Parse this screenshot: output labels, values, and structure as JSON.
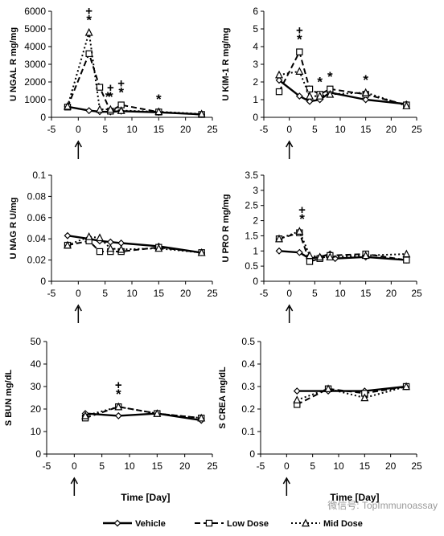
{
  "chart_data": [
    {
      "type": "line",
      "ylabel": "U NGAL R mg/mg",
      "xlim": [
        -5,
        25
      ],
      "ylim": [
        0,
        6000
      ],
      "yticks": [
        0,
        1000,
        2000,
        3000,
        4000,
        5000,
        6000
      ],
      "xticks": [
        -5,
        0,
        5,
        10,
        15,
        20,
        25
      ],
      "series": [
        {
          "name": "Vehicle",
          "x": [
            -2,
            2,
            4,
            6,
            8,
            15,
            23
          ],
          "y": [
            600,
            380,
            320,
            310,
            350,
            280,
            170
          ]
        },
        {
          "name": "Low Dose",
          "x": [
            -2,
            2,
            4,
            6,
            8,
            15,
            23
          ],
          "y": [
            580,
            3600,
            1700,
            350,
            700,
            300,
            160
          ]
        },
        {
          "name": "Mid Dose",
          "x": [
            -2,
            2,
            4,
            6,
            8,
            15,
            23
          ],
          "y": [
            620,
            4800,
            450,
            450,
            380,
            320,
            190
          ]
        }
      ],
      "annotations": [
        {
          "x": 2,
          "marks": "+ *"
        },
        {
          "x": 5.5,
          "marks": "*"
        },
        {
          "x": 6,
          "marks": "+ *"
        },
        {
          "x": 8,
          "marks": "+ *"
        },
        {
          "x": 15,
          "marks": "*"
        }
      ]
    },
    {
      "type": "line",
      "ylabel": "U KIM-1 R mg/mg",
      "xlim": [
        -5,
        25
      ],
      "ylim": [
        0,
        6
      ],
      "yticks": [
        0,
        1,
        2,
        3,
        4,
        5,
        6
      ],
      "xticks": [
        -5,
        0,
        5,
        10,
        15,
        20,
        25
      ],
      "series": [
        {
          "name": "Vehicle",
          "x": [
            -2,
            2,
            4,
            6,
            8,
            15,
            23
          ],
          "y": [
            2.1,
            1.2,
            0.9,
            1.0,
            1.4,
            1.0,
            0.75
          ]
        },
        {
          "name": "Low Dose",
          "x": [
            -2,
            2,
            4,
            6,
            8,
            15,
            23
          ],
          "y": [
            1.45,
            3.7,
            1.6,
            1.3,
            1.6,
            1.3,
            0.7
          ]
        },
        {
          "name": "Mid Dose",
          "x": [
            -2,
            2,
            4,
            6,
            8,
            15,
            23
          ],
          "y": [
            2.4,
            2.6,
            1.2,
            1.2,
            1.3,
            1.4,
            0.65
          ]
        }
      ],
      "annotations": [
        {
          "x": 2,
          "marks": "+ *"
        },
        {
          "x": 6,
          "marks": "*"
        },
        {
          "x": 8,
          "marks": "*"
        },
        {
          "x": 15,
          "marks": "*"
        }
      ]
    },
    {
      "type": "line",
      "ylabel": "U NAG R U/mg",
      "xlim": [
        -5,
        25
      ],
      "ylim": [
        0,
        0.1
      ],
      "yticks": [
        0,
        0.02,
        0.04,
        0.06,
        0.08,
        0.1
      ],
      "xticks": [
        -5,
        0,
        5,
        10,
        15,
        20,
        25
      ],
      "series": [
        {
          "name": "Vehicle",
          "x": [
            -2,
            2,
            4,
            6,
            8,
            15,
            23
          ],
          "y": [
            0.043,
            0.04,
            0.038,
            0.037,
            0.036,
            0.033,
            0.027
          ]
        },
        {
          "name": "Low Dose",
          "x": [
            -2,
            2,
            4,
            6,
            8,
            15,
            23
          ],
          "y": [
            0.034,
            0.038,
            0.028,
            0.028,
            0.028,
            0.032,
            0.027
          ]
        },
        {
          "name": "Mid Dose",
          "x": [
            -2,
            2,
            4,
            6,
            8,
            15,
            23
          ],
          "y": [
            0.034,
            0.042,
            0.041,
            0.031,
            0.03,
            0.031,
            0.027
          ]
        }
      ],
      "annotations": []
    },
    {
      "type": "line",
      "ylabel": "U PRO R mg/mg",
      "xlim": [
        -5,
        25
      ],
      "ylim": [
        0,
        3.5
      ],
      "yticks": [
        0,
        0.5,
        1,
        1.5,
        2,
        2.5,
        3,
        3.5
      ],
      "xticks": [
        -5,
        0,
        5,
        10,
        15,
        20,
        25
      ],
      "series": [
        {
          "name": "Vehicle",
          "x": [
            -2,
            2,
            4,
            6,
            8,
            9,
            15,
            23
          ],
          "y": [
            1.0,
            0.95,
            0.75,
            0.8,
            0.9,
            0.75,
            0.8,
            0.7
          ]
        },
        {
          "name": "Low Dose",
          "x": [
            -2,
            2,
            4,
            6,
            8,
            15,
            23
          ],
          "y": [
            1.4,
            1.6,
            0.65,
            0.75,
            0.85,
            0.9,
            0.7
          ]
        },
        {
          "name": "Mid Dose",
          "x": [
            -2,
            2,
            4,
            6,
            8,
            15,
            23
          ],
          "y": [
            1.4,
            1.65,
            0.85,
            0.8,
            0.8,
            0.85,
            0.9
          ]
        }
      ],
      "annotations": [
        {
          "x": 2.5,
          "marks": "+ *"
        }
      ]
    },
    {
      "type": "line",
      "ylabel": "S BUN mg/dL",
      "xlabel": "Time [Day]",
      "xlim": [
        -5,
        25
      ],
      "ylim": [
        0,
        50
      ],
      "yticks": [
        0,
        10,
        20,
        30,
        40,
        50
      ],
      "xticks": [
        -5,
        0,
        5,
        10,
        15,
        20,
        25
      ],
      "series": [
        {
          "name": "Vehicle",
          "x": [
            2,
            8,
            15,
            23
          ],
          "y": [
            18,
            17,
            18,
            15
          ]
        },
        {
          "name": "Low Dose",
          "x": [
            2,
            8,
            15,
            23
          ],
          "y": [
            16,
            21,
            18,
            16
          ]
        },
        {
          "name": "Mid Dose",
          "x": [
            2,
            8,
            15,
            23
          ],
          "y": [
            17,
            21,
            18,
            16
          ]
        }
      ],
      "annotations": [
        {
          "x": 8,
          "marks": "+ *"
        }
      ]
    },
    {
      "type": "line",
      "ylabel": "S CREA mg/dL",
      "xlabel": "Time [Day]",
      "xlim": [
        -5,
        25
      ],
      "ylim": [
        0,
        0.5
      ],
      "yticks": [
        0,
        0.1,
        0.2,
        0.3,
        0.4,
        0.5
      ],
      "xticks": [
        -5,
        0,
        5,
        10,
        15,
        20,
        25
      ],
      "series": [
        {
          "name": "Vehicle",
          "x": [
            2,
            8,
            15,
            23
          ],
          "y": [
            0.28,
            0.28,
            0.28,
            0.3
          ]
        },
        {
          "name": "Low Dose",
          "x": [
            2,
            8,
            15,
            23
          ],
          "y": [
            0.22,
            0.29,
            0.27,
            0.3
          ]
        },
        {
          "name": "Mid Dose",
          "x": [
            2,
            8,
            15,
            23
          ],
          "y": [
            0.24,
            0.29,
            0.25,
            0.3
          ]
        }
      ],
      "annotations": []
    }
  ],
  "legend": {
    "placement": "bottom",
    "entries": [
      "Vehicle",
      "Low Dose",
      "Mid Dose"
    ]
  },
  "watermark": "微信号: TopImmunoassay",
  "x_arrow_at": 0
}
